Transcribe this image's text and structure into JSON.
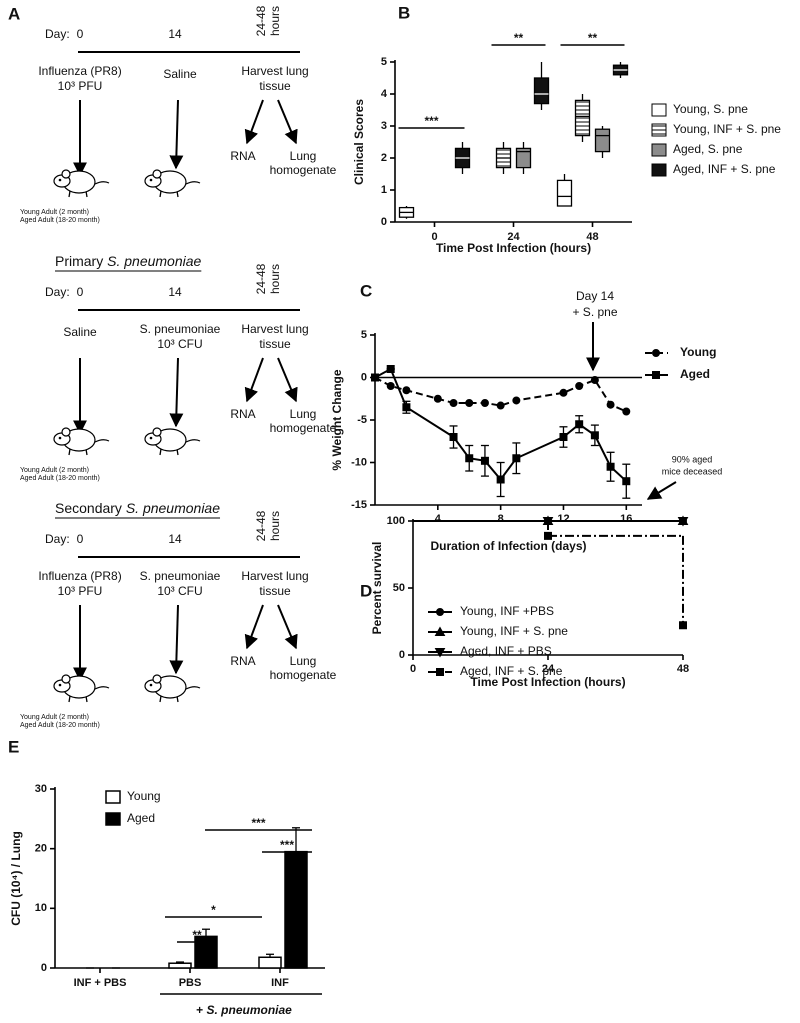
{
  "panel_a": {
    "label": "A",
    "schemes": [
      {
        "day_label": "Day:",
        "days": [
          "0",
          "14"
        ],
        "window": [
          "24-48",
          "hours"
        ],
        "steps": [
          [
            "Influenza (PR8)",
            "10³ PFU"
          ],
          [
            "Saline"
          ],
          [
            "Harvest lung",
            "tissue"
          ]
        ],
        "outcomes": [
          "RNA",
          "Lung",
          "homogenate"
        ],
        "cohorts": [
          "Young Adult (2 month)",
          "Aged Adult (18-20 month)"
        ]
      },
      {
        "title": [
          "Primary ",
          "S. pneumoniae"
        ],
        "day_label": "Day:",
        "days": [
          "0",
          "14"
        ],
        "window": [
          "24-48",
          "hours"
        ],
        "steps": [
          [
            "Saline"
          ],
          [
            "S. pneumoniae",
            "10³ CFU"
          ],
          [
            "Harvest lung",
            "tissue"
          ]
        ],
        "outcomes": [
          "RNA",
          "Lung",
          "homogenate"
        ],
        "cohorts": [
          "Young Adult (2 month)",
          "Aged Adult (18-20 month)"
        ]
      },
      {
        "title": [
          "Secondary ",
          "S. pneumoniae"
        ],
        "day_label": "Day:",
        "days": [
          "0",
          "14"
        ],
        "window": [
          "24-48",
          "hours"
        ],
        "steps": [
          [
            "Influenza (PR8)",
            "10³ PFU"
          ],
          [
            "S. pneumoniae",
            "10³ CFU"
          ],
          [
            "Harvest lung",
            "tissue"
          ]
        ],
        "outcomes": [
          "RNA",
          "Lung",
          "homogenate"
        ],
        "cohorts": [
          "Young Adult (2 month)",
          "Aged Adult (18-20 month)"
        ]
      }
    ]
  },
  "chart_data": [
    {
      "type": "box",
      "label": "B",
      "xlabel": "Time Post Infection (hours)",
      "ylabel": "Clinical Scores",
      "categories": [
        "0",
        "24",
        "48"
      ],
      "ylim": [
        0,
        5
      ],
      "yticks": [
        0,
        1,
        2,
        3,
        4,
        5
      ],
      "series": [
        {
          "name": "Young, S. pne",
          "color": "#ffffff",
          "values": [
            {
              "min": 0.1,
              "q1": 0.15,
              "median": 0.3,
              "q3": 0.45,
              "max": 0.5
            },
            null,
            {
              "min": 0.5,
              "q1": 0.5,
              "median": 0.8,
              "q3": 1.3,
              "max": 1.5
            }
          ]
        },
        {
          "name": "Young, INF + S. pne",
          "color": "#ffffff",
          "pattern": "horizontal-lines",
          "values": [
            null,
            {
              "min": 1.5,
              "q1": 1.7,
              "median": 2.0,
              "q3": 2.3,
              "max": 2.5
            },
            {
              "min": 2.5,
              "q1": 2.7,
              "median": 3.3,
              "q3": 3.8,
              "max": 4.0
            }
          ]
        },
        {
          "name": "Aged, S. pne",
          "color": "#8c8c8c",
          "values": [
            null,
            {
              "min": 1.5,
              "q1": 1.7,
              "median": 2.2,
              "q3": 2.3,
              "max": 2.5
            },
            {
              "min": 2.0,
              "q1": 2.2,
              "median": 2.7,
              "q3": 2.9,
              "max": 3.0
            }
          ]
        },
        {
          "name": "Aged, INF + S. pne",
          "color": "#111111",
          "values": [
            {
              "min": 1.5,
              "q1": 1.7,
              "median": 2.0,
              "q3": 2.3,
              "max": 2.5
            },
            {
              "min": 3.5,
              "q1": 3.7,
              "median": 4.0,
              "q3": 4.5,
              "max": 5.0
            },
            {
              "min": 4.5,
              "q1": 4.6,
              "median": 4.75,
              "q3": 4.9,
              "max": 5.0
            }
          ]
        }
      ],
      "annotations": [
        "***",
        "**",
        "**"
      ]
    },
    {
      "type": "line",
      "label": "C",
      "xlabel": "Duration of Infection (days)",
      "ylabel": "% Weight Change",
      "xlim": [
        0,
        17
      ],
      "xticks": [
        4,
        8,
        12,
        16
      ],
      "ylim": [
        -15,
        5
      ],
      "yticks": [
        -15,
        -10,
        -5,
        0,
        5
      ],
      "series": [
        {
          "name": "Young",
          "color": "#000000",
          "marker": "circle",
          "line_style": "dashed",
          "x": [
            0,
            1,
            2,
            4,
            5,
            6,
            7,
            8,
            9,
            12,
            13,
            14,
            15,
            16
          ],
          "values": [
            0,
            -1,
            -1.5,
            -2.5,
            -3,
            -3,
            -3,
            -3.3,
            -2.7,
            -1.8,
            -1,
            -0.3,
            -3.2,
            -4
          ]
        },
        {
          "name": "Aged",
          "color": "#000000",
          "marker": "square",
          "line_style": "solid",
          "x": [
            0,
            1,
            2,
            5,
            6,
            7,
            8,
            9,
            12,
            13,
            14,
            15,
            16
          ],
          "values": [
            0,
            1,
            -3.5,
            -7,
            -9.5,
            -9.8,
            -12,
            -9.5,
            -7,
            -5.5,
            -6.8,
            -10.5,
            -12.2
          ],
          "errors": [
            0,
            0,
            0.7,
            1.3,
            1.5,
            1.8,
            2,
            1.8,
            1.2,
            1,
            1.2,
            1.7,
            2
          ]
        }
      ],
      "annotations": [
        [
          "Day 14",
          "+ S. pne"
        ],
        [
          "90% aged",
          "mice deceased"
        ]
      ]
    },
    {
      "type": "step",
      "label": "D",
      "xlabel": "Time Post Infection (hours)",
      "ylabel": "Percent survival",
      "xlim": [
        0,
        48
      ],
      "xticks": [
        0,
        24,
        48
      ],
      "ylim": [
        0,
        100
      ],
      "yticks": [
        0,
        50,
        100
      ],
      "series": [
        {
          "name": "Young, INF +PBS",
          "color": "#000000",
          "marker": "circle",
          "line_style": "solid",
          "x": [
            0,
            24,
            48
          ],
          "values": [
            100,
            100,
            100
          ]
        },
        {
          "name": "Young, INF + S. pne",
          "color": "#000000",
          "marker": "triangle",
          "line_style": "solid",
          "x": [
            0,
            24,
            48
          ],
          "values": [
            100,
            100,
            100
          ]
        },
        {
          "name": "Aged, INF + PBS",
          "color": "#000000",
          "marker": "triangle-down",
          "line_style": "solid",
          "x": [
            0,
            24,
            48
          ],
          "values": [
            100,
            100,
            100
          ]
        },
        {
          "name": "Aged, INF + S. pne",
          "color": "#000000",
          "marker": "square",
          "line_style": "dash-dot",
          "x": [
            0,
            24,
            48
          ],
          "values": [
            100,
            88.9,
            22.2
          ]
        }
      ]
    },
    {
      "type": "bar",
      "label": "E",
      "ylabel": "CFU (10⁴) / Lung",
      "categories": [
        "INF + PBS",
        "PBS",
        "INF"
      ],
      "group_label": [
        "+ ",
        "S. pneumoniae"
      ],
      "ylim": [
        0,
        30
      ],
      "yticks": [
        0,
        10,
        20,
        30
      ],
      "series": [
        {
          "name": "Young",
          "color": "#ffffff",
          "values": [
            0,
            0.8,
            1.8
          ],
          "errors": [
            0,
            0.2,
            0.5
          ]
        },
        {
          "name": "Aged",
          "color": "#000000",
          "values": [
            0,
            5.3,
            19.5
          ],
          "errors": [
            0,
            1.2,
            4
          ]
        }
      ],
      "annotations": [
        "**",
        "*",
        "***",
        "***"
      ]
    }
  ]
}
